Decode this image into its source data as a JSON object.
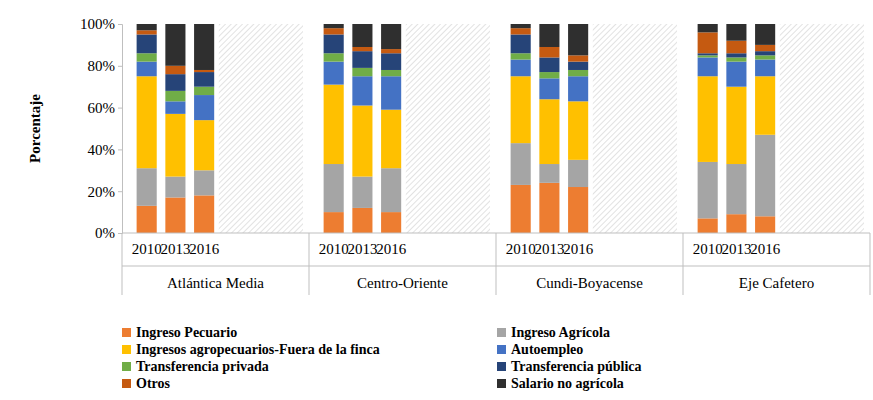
{
  "chart_data": {
    "type": "bar",
    "stacked": true,
    "y_label": "Porcentaje",
    "categories": [
      "2010",
      "2013",
      "2016",
      "2010",
      "2013",
      "2016",
      "2010",
      "2013",
      "2016",
      "2010",
      "2013",
      "2016"
    ],
    "groups": [
      "Atlántica Media",
      "Centro-Oriente",
      "Cundi-Boyacense",
      "Eje Cafetero"
    ],
    "ylim": [
      0,
      100
    ],
    "yticks": [
      {
        "value": 0,
        "label": "0%"
      },
      {
        "value": 20,
        "label": "20%"
      },
      {
        "value": 40,
        "label": "40%"
      },
      {
        "value": 60,
        "label": "60%"
      },
      {
        "value": 80,
        "label": "80%"
      },
      {
        "value": 100,
        "label": "100%"
      }
    ],
    "legend": "bottom",
    "series": [
      {
        "name": "Ingreso Pecuario",
        "color": "#ed7d31",
        "values": [
          13,
          17,
          18,
          10,
          12,
          10,
          23,
          24,
          22,
          7,
          9,
          8
        ]
      },
      {
        "name": "Ingreso Agrícola",
        "color": "#a5a5a5",
        "values": [
          18,
          10,
          12,
          23,
          15,
          21,
          20,
          9,
          13,
          27,
          24,
          39
        ]
      },
      {
        "name": "Ingresos agropecuarios-Fuera de la finca",
        "color": "#ffc000",
        "values": [
          44,
          30,
          24,
          38,
          34,
          28,
          32,
          31,
          28,
          41,
          37,
          28
        ]
      },
      {
        "name": "Autoempleo",
        "color": "#4472c4",
        "values": [
          7,
          6,
          12,
          11,
          14,
          16,
          8,
          10,
          12,
          9,
          12,
          8
        ]
      },
      {
        "name": "Transferencia privada",
        "color": "#70ad47",
        "values": [
          4,
          5,
          4,
          4,
          4,
          3,
          3,
          3,
          3,
          1,
          2,
          2
        ]
      },
      {
        "name": "Transferencia pública",
        "color": "#264478",
        "values": [
          9,
          8,
          7,
          9,
          8,
          8,
          9,
          7,
          4,
          1,
          2,
          2
        ]
      },
      {
        "name": "Otros",
        "color": "#c55a11",
        "values": [
          2,
          4,
          1,
          3,
          2,
          2,
          3,
          5,
          3,
          10,
          6,
          3
        ]
      },
      {
        "name": "Salario no agrícola",
        "color": "#2f2f2f",
        "values": [
          3,
          20,
          22,
          2,
          11,
          12,
          2,
          11,
          15,
          4,
          8,
          10
        ]
      }
    ]
  }
}
